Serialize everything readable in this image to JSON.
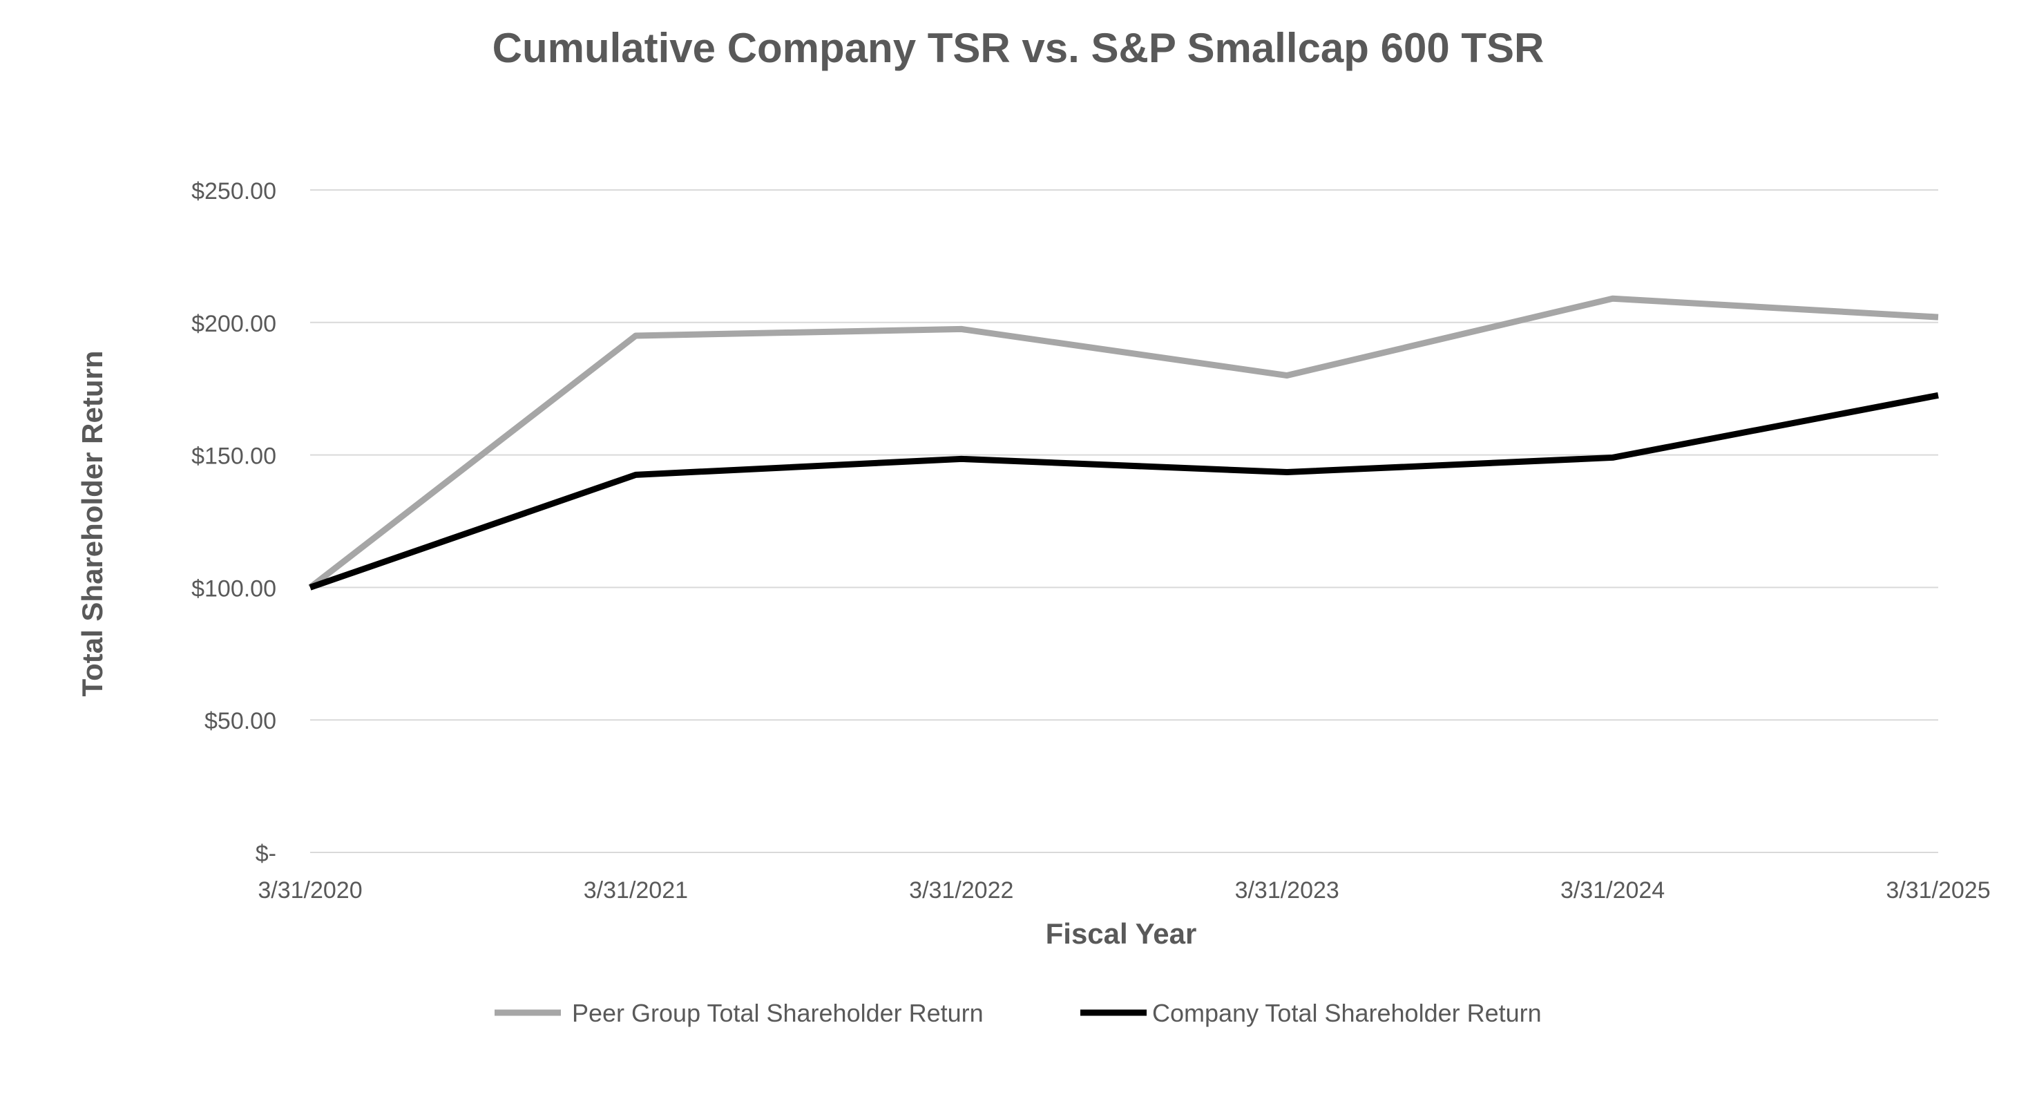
{
  "chart_data": {
    "type": "line",
    "title": "Cumulative Company TSR vs. S&P Smallcap 600 TSR",
    "xlabel": "Fiscal Year",
    "ylabel": "Total Shareholder Return",
    "categories": [
      "3/31/2020",
      "3/31/2021",
      "3/31/2022",
      "3/31/2023",
      "3/31/2024",
      "3/31/2025"
    ],
    "ylim": [
      0,
      250
    ],
    "yticks": [
      0,
      50,
      100,
      150,
      200,
      250
    ],
    "ytick_labels": [
      "$-",
      "$50.00",
      "$100.00",
      "$150.00",
      "$200.00",
      "$250.00"
    ],
    "grid": true,
    "legend_position": "bottom",
    "series": [
      {
        "name": "Peer Group Total Shareholder Return",
        "color": "#a6a6a6",
        "values": [
          100,
          195,
          197.5,
          180,
          209,
          202
        ]
      },
      {
        "name": "Company Total Shareholder Return",
        "color": "#000000",
        "values": [
          100,
          142.5,
          148.5,
          143.5,
          149,
          172.5
        ]
      }
    ]
  },
  "colors": {
    "gridline": "#d9d9d9",
    "text": "#595959"
  }
}
